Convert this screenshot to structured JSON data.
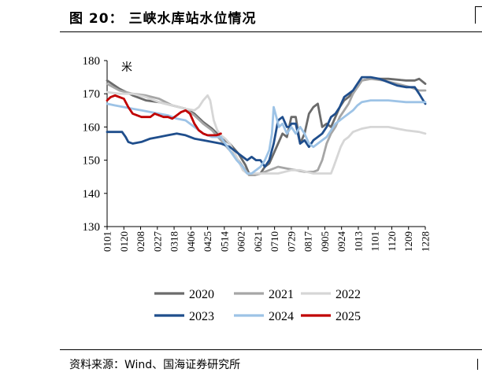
{
  "header": {
    "title": "图 20：  三峡水库站水位情况"
  },
  "footer": {
    "source": "资料来源：Wind、国海证券研究所"
  },
  "chart_data": {
    "type": "line",
    "title": "三峡水库站水位情况",
    "ylabel": "米",
    "xlabel": "",
    "ylim": [
      130,
      180
    ],
    "yticks": [
      130,
      140,
      150,
      160,
      170,
      180
    ],
    "xticks": [
      "0101",
      "0120",
      "0208",
      "0227",
      "0318",
      "0406",
      "0425",
      "0514",
      "0602",
      "0621",
      "0710",
      "0729",
      "0817",
      "0905",
      "0924",
      "1013",
      "1101",
      "1120",
      "1209",
      "1228"
    ],
    "x_day_of_year": [
      1,
      20,
      39,
      58,
      77,
      96,
      115,
      134,
      153,
      172,
      191,
      210,
      229,
      248,
      267,
      286,
      305,
      324,
      343,
      362
    ],
    "legend_position": "bottom",
    "series": [
      {
        "name": "2020",
        "color": "#6b6b6b",
        "points": [
          [
            1,
            174
          ],
          [
            15,
            171.5
          ],
          [
            30,
            169.5
          ],
          [
            45,
            168
          ],
          [
            60,
            167.5
          ],
          [
            75,
            166.5
          ],
          [
            90,
            165.5
          ],
          [
            100,
            164
          ],
          [
            110,
            161.5
          ],
          [
            120,
            159.5
          ],
          [
            130,
            157
          ],
          [
            140,
            155
          ],
          [
            150,
            152
          ],
          [
            158,
            148.5
          ],
          [
            162,
            146
          ],
          [
            168,
            145.5
          ],
          [
            175,
            146
          ],
          [
            180,
            148
          ],
          [
            185,
            149
          ],
          [
            190,
            152
          ],
          [
            195,
            155
          ],
          [
            200,
            158
          ],
          [
            205,
            157
          ],
          [
            210,
            163
          ],
          [
            215,
            163
          ],
          [
            220,
            155
          ],
          [
            225,
            158
          ],
          [
            230,
            164
          ],
          [
            235,
            166
          ],
          [
            240,
            167
          ],
          [
            245,
            160
          ],
          [
            250,
            161
          ],
          [
            255,
            160
          ],
          [
            260,
            163
          ],
          [
            265,
            166
          ],
          [
            270,
            168
          ],
          [
            275,
            169
          ],
          [
            280,
            170.5
          ],
          [
            285,
            172
          ],
          [
            290,
            174
          ],
          [
            300,
            174.5
          ],
          [
            320,
            174.5
          ],
          [
            340,
            174
          ],
          [
            350,
            174
          ],
          [
            355,
            174.5
          ],
          [
            362,
            173
          ]
        ]
      },
      {
        "name": "2021",
        "color": "#a6a6a6",
        "points": [
          [
            1,
            173
          ],
          [
            15,
            171
          ],
          [
            30,
            170
          ],
          [
            45,
            169.5
          ],
          [
            60,
            168.5
          ],
          [
            75,
            166.5
          ],
          [
            90,
            165.5
          ],
          [
            100,
            163.5
          ],
          [
            110,
            161
          ],
          [
            120,
            159
          ],
          [
            130,
            156
          ],
          [
            140,
            153
          ],
          [
            150,
            150
          ],
          [
            158,
            147
          ],
          [
            162,
            145.5
          ],
          [
            168,
            145.5
          ],
          [
            175,
            146
          ],
          [
            185,
            147
          ],
          [
            195,
            148
          ],
          [
            205,
            147.5
          ],
          [
            215,
            147
          ],
          [
            225,
            146.5
          ],
          [
            235,
            146.5
          ],
          [
            240,
            147
          ],
          [
            245,
            150
          ],
          [
            250,
            155
          ],
          [
            255,
            158
          ],
          [
            260,
            160
          ],
          [
            265,
            163
          ],
          [
            270,
            165
          ],
          [
            275,
            167
          ],
          [
            280,
            170
          ],
          [
            285,
            172
          ],
          [
            290,
            174
          ],
          [
            300,
            174.5
          ],
          [
            315,
            174
          ],
          [
            330,
            173
          ],
          [
            345,
            172
          ],
          [
            355,
            171
          ],
          [
            362,
            171
          ]
        ]
      },
      {
        "name": "2022",
        "color": "#d6d6d6",
        "points": [
          [
            1,
            170.5
          ],
          [
            15,
            170
          ],
          [
            30,
            170
          ],
          [
            45,
            169
          ],
          [
            60,
            167.5
          ],
          [
            75,
            166.5
          ],
          [
            90,
            165.5
          ],
          [
            100,
            165
          ],
          [
            105,
            166
          ],
          [
            110,
            168
          ],
          [
            115,
            169.5
          ],
          [
            118,
            168
          ],
          [
            122,
            162
          ],
          [
            126,
            159
          ],
          [
            130,
            157.5
          ],
          [
            135,
            156.5
          ],
          [
            140,
            155
          ],
          [
            148,
            151
          ],
          [
            155,
            147
          ],
          [
            160,
            146
          ],
          [
            170,
            146
          ],
          [
            180,
            146
          ],
          [
            195,
            146
          ],
          [
            210,
            147
          ],
          [
            220,
            147
          ],
          [
            235,
            146
          ],
          [
            245,
            146
          ],
          [
            250,
            146
          ],
          [
            255,
            146
          ],
          [
            258,
            148
          ],
          [
            262,
            151
          ],
          [
            266,
            154
          ],
          [
            270,
            156
          ],
          [
            275,
            157
          ],
          [
            280,
            158.5
          ],
          [
            290,
            159.5
          ],
          [
            300,
            160
          ],
          [
            320,
            160
          ],
          [
            340,
            159
          ],
          [
            355,
            158.5
          ],
          [
            362,
            158
          ]
        ]
      },
      {
        "name": "2023",
        "color": "#1f4e8c",
        "points": [
          [
            1,
            158.5
          ],
          [
            10,
            158.5
          ],
          [
            18,
            158.5
          ],
          [
            22,
            157
          ],
          [
            25,
            155.5
          ],
          [
            30,
            155
          ],
          [
            40,
            155.5
          ],
          [
            50,
            156.5
          ],
          [
            60,
            157
          ],
          [
            70,
            157.5
          ],
          [
            80,
            158
          ],
          [
            90,
            157.5
          ],
          [
            100,
            156.5
          ],
          [
            110,
            156
          ],
          [
            120,
            155.5
          ],
          [
            130,
            155
          ],
          [
            140,
            154
          ],
          [
            150,
            152
          ],
          [
            155,
            151
          ],
          [
            160,
            150
          ],
          [
            165,
            151
          ],
          [
            170,
            150
          ],
          [
            175,
            150
          ],
          [
            180,
            148
          ],
          [
            185,
            150
          ],
          [
            190,
            155
          ],
          [
            195,
            162
          ],
          [
            200,
            163
          ],
          [
            205,
            160
          ],
          [
            208,
            160
          ],
          [
            210,
            161
          ],
          [
            215,
            161
          ],
          [
            220,
            155
          ],
          [
            225,
            156
          ],
          [
            230,
            154
          ],
          [
            235,
            156
          ],
          [
            240,
            157
          ],
          [
            245,
            158
          ],
          [
            250,
            160
          ],
          [
            255,
            163
          ],
          [
            260,
            164
          ],
          [
            265,
            166
          ],
          [
            270,
            169
          ],
          [
            275,
            170
          ],
          [
            280,
            171
          ],
          [
            285,
            173
          ],
          [
            290,
            175
          ],
          [
            300,
            175
          ],
          [
            310,
            174.5
          ],
          [
            320,
            173.5
          ],
          [
            330,
            172.5
          ],
          [
            340,
            172
          ],
          [
            350,
            172
          ],
          [
            355,
            170
          ],
          [
            362,
            167
          ]
        ]
      },
      {
        "name": "2024",
        "color": "#9dc3e6",
        "points": [
          [
            1,
            167
          ],
          [
            10,
            166.5
          ],
          [
            20,
            166
          ],
          [
            30,
            165.5
          ],
          [
            40,
            165
          ],
          [
            50,
            164.5
          ],
          [
            60,
            164
          ],
          [
            70,
            163.5
          ],
          [
            80,
            162.5
          ],
          [
            90,
            162
          ],
          [
            100,
            160
          ],
          [
            110,
            158
          ],
          [
            120,
            157
          ],
          [
            130,
            157
          ],
          [
            140,
            153
          ],
          [
            148,
            150
          ],
          [
            155,
            148
          ],
          [
            160,
            146
          ],
          [
            165,
            146
          ],
          [
            170,
            147
          ],
          [
            175,
            148
          ],
          [
            180,
            150
          ],
          [
            185,
            153
          ],
          [
            188,
            158
          ],
          [
            190,
            166
          ],
          [
            193,
            163
          ],
          [
            196,
            160
          ],
          [
            200,
            161
          ],
          [
            205,
            158
          ],
          [
            210,
            160
          ],
          [
            215,
            158
          ],
          [
            220,
            160
          ],
          [
            225,
            158
          ],
          [
            230,
            155
          ],
          [
            235,
            154
          ],
          [
            240,
            155
          ],
          [
            245,
            156
          ],
          [
            250,
            157
          ],
          [
            255,
            159
          ],
          [
            260,
            161
          ],
          [
            265,
            162
          ],
          [
            270,
            163
          ],
          [
            275,
            164
          ],
          [
            280,
            165
          ],
          [
            285,
            166.5
          ],
          [
            290,
            167.5
          ],
          [
            300,
            168
          ],
          [
            320,
            168
          ],
          [
            340,
            167.5
          ],
          [
            362,
            167.5
          ]
        ]
      },
      {
        "name": "2025",
        "color": "#c00000",
        "points": [
          [
            1,
            168
          ],
          [
            5,
            169
          ],
          [
            10,
            169.5
          ],
          [
            15,
            169
          ],
          [
            20,
            168.5
          ],
          [
            25,
            166
          ],
          [
            30,
            164
          ],
          [
            35,
            163.5
          ],
          [
            40,
            163
          ],
          [
            45,
            163
          ],
          [
            50,
            163
          ],
          [
            55,
            164
          ],
          [
            60,
            163.5
          ],
          [
            65,
            163
          ],
          [
            70,
            163
          ],
          [
            75,
            162.5
          ],
          [
            80,
            163.5
          ],
          [
            85,
            164.5
          ],
          [
            90,
            165
          ],
          [
            95,
            164
          ],
          [
            100,
            161
          ],
          [
            105,
            159
          ],
          [
            110,
            158
          ],
          [
            115,
            157.5
          ],
          [
            120,
            157.5
          ],
          [
            125,
            157.5
          ],
          [
            130,
            158
          ]
        ]
      }
    ]
  }
}
